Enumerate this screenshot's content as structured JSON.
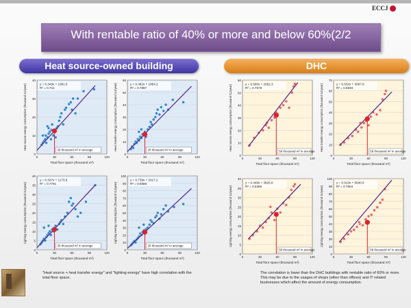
{
  "header": {
    "logo_text": "ECCJ",
    "title": "With rentable ratio of 40% or more and below 60%(2/2"
  },
  "sections": {
    "left_title": "Heat source-owned building",
    "right_title": "DHC"
  },
  "notes": {
    "left": "\"Heat source + heat transfer energy\" and \"lighting energy\" have high correlation with the total floor space.",
    "right": "The correlation is lower than the DHC buildings with rentable ratio of 60% or more. This may be due to the usages of shops (other than offices) and IT related businesses which affect the amount of energy consumption."
  },
  "colors": {
    "left_plot_bg": "#dfeaf7",
    "right_plot_bg": "#fff4dc",
    "left_point": "#2f86c9",
    "right_point": "#e8685e",
    "regression_line": "#5a2d8c",
    "average_marker": "#e0202a"
  },
  "chart_data": [
    {
      "type": "scatter",
      "theme": "left",
      "equation": "y = 0.349x + 1991.5",
      "r2": "R² = 0.741",
      "ylabel": "Heat source energy consumption (thousand GJ/year)",
      "xlabel": "Total floor space (thousand m²)",
      "xlim": [
        0,
        120
      ],
      "ylim": [
        0,
        40
      ],
      "xticks": [
        0,
        30,
        60,
        90,
        120
      ],
      "yticks": [
        0,
        10,
        20,
        30,
        40
      ],
      "line": [
        [
          0,
          2
        ],
        [
          100,
          37
        ]
      ],
      "average": [
        30,
        12.5
      ],
      "average_label": "30 thousand m² in average",
      "points": [
        [
          8,
          5
        ],
        [
          10,
          6
        ],
        [
          12,
          7
        ],
        [
          14,
          8
        ],
        [
          15,
          10
        ],
        [
          16,
          6
        ],
        [
          18,
          9
        ],
        [
          20,
          11
        ],
        [
          22,
          12
        ],
        [
          24,
          8
        ],
        [
          25,
          13
        ],
        [
          28,
          10
        ],
        [
          30,
          12
        ],
        [
          32,
          9
        ],
        [
          34,
          14
        ],
        [
          36,
          15
        ],
        [
          38,
          18
        ],
        [
          40,
          20
        ],
        [
          42,
          22
        ],
        [
          45,
          16
        ],
        [
          48,
          24
        ],
        [
          50,
          25
        ],
        [
          55,
          27
        ],
        [
          58,
          28
        ],
        [
          60,
          24
        ],
        [
          62,
          30
        ],
        [
          66,
          22
        ],
        [
          70,
          30
        ],
        [
          80,
          34
        ],
        [
          98,
          35
        ],
        [
          10,
          10
        ],
        [
          18,
          15
        ],
        [
          20,
          14
        ],
        [
          26,
          16
        ]
      ]
    },
    {
      "type": "scatter",
      "theme": "left",
      "equation": "y = 0.482x + 1854.2",
      "r2": "R² = 0.7897",
      "ylabel": "Heat transfer energy consumption (thousand GJ/year)",
      "xlabel": "Total floor space (thousand m²)",
      "xlim": [
        0,
        120
      ],
      "ylim": [
        0,
        60
      ],
      "xticks": [
        0,
        30,
        60,
        90,
        120
      ],
      "yticks": [
        0,
        10,
        20,
        30,
        40,
        50,
        60
      ],
      "line": [
        [
          0,
          2
        ],
        [
          110,
          55
        ]
      ],
      "average": [
        30,
        16
      ],
      "average_label": "30 thousand m² in average",
      "points": [
        [
          6,
          4
        ],
        [
          8,
          6
        ],
        [
          10,
          5
        ],
        [
          12,
          8
        ],
        [
          14,
          10
        ],
        [
          16,
          9
        ],
        [
          18,
          12
        ],
        [
          20,
          11
        ],
        [
          22,
          14
        ],
        [
          24,
          13
        ],
        [
          26,
          16
        ],
        [
          28,
          15
        ],
        [
          30,
          18
        ],
        [
          32,
          14
        ],
        [
          35,
          20
        ],
        [
          38,
          22
        ],
        [
          40,
          26
        ],
        [
          42,
          24
        ],
        [
          45,
          28
        ],
        [
          48,
          30
        ],
        [
          50,
          33
        ],
        [
          52,
          36
        ],
        [
          55,
          32
        ],
        [
          58,
          38
        ],
        [
          62,
          35
        ],
        [
          66,
          40
        ],
        [
          70,
          36
        ],
        [
          78,
          44
        ],
        [
          96,
          42
        ],
        [
          20,
          18
        ],
        [
          24,
          20
        ]
      ]
    },
    {
      "type": "scatter",
      "theme": "left",
      "equation": "y = 0.337x + 1173.6",
      "r2": "R² = 0.7791",
      "ylabel": "Lighting energy consumption (thousand GJ/year)",
      "xlabel": "Total floor space (thousand m²)",
      "xlim": [
        0,
        120
      ],
      "ylim": [
        0,
        40
      ],
      "xticks": [
        0,
        30,
        60,
        90,
        120
      ],
      "yticks": [
        0,
        5,
        10,
        15,
        20,
        25,
        30,
        35,
        40
      ],
      "line": [
        [
          0,
          1.2
        ],
        [
          100,
          35
        ]
      ],
      "average": [
        30,
        11
      ],
      "average_label": "30 thousand m² in average",
      "points": [
        [
          6,
          3
        ],
        [
          8,
          4
        ],
        [
          10,
          5
        ],
        [
          12,
          6
        ],
        [
          14,
          5
        ],
        [
          16,
          7
        ],
        [
          18,
          8
        ],
        [
          20,
          9
        ],
        [
          22,
          10
        ],
        [
          24,
          8
        ],
        [
          26,
          11
        ],
        [
          28,
          10
        ],
        [
          30,
          12
        ],
        [
          32,
          13
        ],
        [
          35,
          11
        ],
        [
          38,
          14
        ],
        [
          40,
          15
        ],
        [
          42,
          16
        ],
        [
          45,
          14
        ],
        [
          48,
          18
        ],
        [
          52,
          20
        ],
        [
          55,
          26
        ],
        [
          58,
          28
        ],
        [
          60,
          24
        ],
        [
          62,
          25
        ],
        [
          66,
          22
        ],
        [
          70,
          18
        ],
        [
          75,
          20
        ],
        [
          84,
          26
        ],
        [
          100,
          35
        ],
        [
          12,
          12
        ],
        [
          20,
          13
        ]
      ]
    },
    {
      "type": "scatter",
      "theme": "left",
      "equation": "y = 0.739x + 2017.2",
      "r2": "R² = 0.6586",
      "ylabel": "Lighting energy consumption (thousand GJ/year)",
      "xlabel": "Total floor space (thousand m²)",
      "xlim": [
        0,
        120
      ],
      "ylim": [
        0,
        100
      ],
      "xticks": [
        0,
        30,
        60,
        90,
        120
      ],
      "yticks": [
        0,
        10,
        20,
        30,
        40,
        50,
        60,
        70,
        80,
        90,
        100
      ],
      "line": [
        [
          0,
          2
        ],
        [
          110,
          83
        ]
      ],
      "average": [
        30,
        24
      ],
      "average_label": "30 thousand m² in average",
      "points": [
        [
          6,
          6
        ],
        [
          8,
          8
        ],
        [
          10,
          10
        ],
        [
          12,
          12
        ],
        [
          14,
          10
        ],
        [
          16,
          14
        ],
        [
          18,
          16
        ],
        [
          20,
          18
        ],
        [
          22,
          22
        ],
        [
          24,
          20
        ],
        [
          26,
          24
        ],
        [
          28,
          26
        ],
        [
          30,
          22
        ],
        [
          32,
          28
        ],
        [
          35,
          30
        ],
        [
          38,
          34
        ],
        [
          40,
          40
        ],
        [
          42,
          38
        ],
        [
          45,
          36
        ],
        [
          48,
          44
        ],
        [
          50,
          46
        ],
        [
          52,
          50
        ],
        [
          55,
          42
        ],
        [
          58,
          48
        ],
        [
          62,
          55
        ],
        [
          66,
          60
        ],
        [
          70,
          52
        ],
        [
          80,
          58
        ],
        [
          96,
          62
        ],
        [
          20,
          30
        ],
        [
          28,
          34
        ]
      ]
    },
    {
      "type": "scatter",
      "theme": "right",
      "equation": "y = 0.590x + 2682.3",
      "r2": "R² = 0.7578",
      "ylabel": "Heat source energy consumption (thousand GJ/year)",
      "xlabel": "Total floor space (thousand m²)",
      "xlim": [
        0,
        120
      ],
      "ylim": [
        0,
        60
      ],
      "xticks": [
        0,
        30,
        60,
        90,
        120
      ],
      "yticks": [
        0,
        10,
        20,
        30,
        40,
        50,
        60
      ],
      "line": [
        [
          10,
          7
        ],
        [
          95,
          58
        ]
      ],
      "average": [
        58,
        32
      ],
      "average_label": "58 thousand m² in average",
      "points": [
        [
          12,
          8
        ],
        [
          20,
          14
        ],
        [
          28,
          18
        ],
        [
          35,
          20
        ],
        [
          40,
          24
        ],
        [
          45,
          22
        ],
        [
          50,
          28
        ],
        [
          55,
          30
        ],
        [
          60,
          33
        ],
        [
          65,
          38
        ],
        [
          70,
          40
        ],
        [
          75,
          43
        ],
        [
          80,
          38
        ],
        [
          85,
          50
        ],
        [
          88,
          55
        ],
        [
          90,
          57
        ],
        [
          42,
          26
        ],
        [
          58,
          34
        ]
      ]
    },
    {
      "type": "scatter",
      "theme": "right",
      "equation": "y = 0.532x + 3097.8",
      "r2": "R² = 0.6948",
      "ylabel": "Heat transfer energy consumption (thousand GJ/year)",
      "xlabel": "Total floor space (thousand m²)",
      "xlim": [
        0,
        120
      ],
      "ylim": [
        0,
        70
      ],
      "xticks": [
        0,
        30,
        60,
        90,
        120
      ],
      "yticks": [
        0,
        10,
        20,
        30,
        40,
        50,
        60,
        70
      ],
      "line": [
        [
          10,
          9
        ],
        [
          100,
          59
        ]
      ],
      "average": [
        58,
        34
      ],
      "average_label": "58 thousand m² in average",
      "points": [
        [
          12,
          10
        ],
        [
          18,
          12
        ],
        [
          25,
          16
        ],
        [
          32,
          18
        ],
        [
          38,
          24
        ],
        [
          42,
          22
        ],
        [
          48,
          26
        ],
        [
          52,
          30
        ],
        [
          56,
          32
        ],
        [
          60,
          28
        ],
        [
          64,
          36
        ],
        [
          68,
          40
        ],
        [
          74,
          38
        ],
        [
          80,
          42
        ],
        [
          84,
          52
        ],
        [
          88,
          57
        ],
        [
          90,
          60
        ],
        [
          46,
          30
        ]
      ]
    },
    {
      "type": "scatter",
      "theme": "right",
      "equation": "y = 0.449x + 3825.8",
      "r2": "R² = 0.6386",
      "ylabel": "Lighting energy consumption (thousand GJ/year)",
      "xlabel": "Total floor space (thousand m²)",
      "xlim": [
        0,
        120
      ],
      "ylim": [
        0,
        40
      ],
      "xticks": [
        0,
        30,
        60,
        90,
        120
      ],
      "yticks": [
        0,
        5,
        10,
        15,
        20,
        25,
        30,
        35,
        40
      ],
      "line": [
        [
          10,
          8
        ],
        [
          100,
          37
        ]
      ],
      "average": [
        58,
        21
      ],
      "average_label": "58 thousand m² in average",
      "points": [
        [
          12,
          8
        ],
        [
          18,
          10
        ],
        [
          25,
          12
        ],
        [
          30,
          15
        ],
        [
          35,
          14
        ],
        [
          40,
          17
        ],
        [
          45,
          19
        ],
        [
          50,
          22
        ],
        [
          55,
          18
        ],
        [
          60,
          24
        ],
        [
          65,
          22
        ],
        [
          70,
          27
        ],
        [
          75,
          26
        ],
        [
          80,
          30
        ],
        [
          84,
          34
        ],
        [
          88,
          36
        ],
        [
          90,
          37
        ],
        [
          48,
          25
        ]
      ]
    },
    {
      "type": "scatter",
      "theme": "right",
      "equation": "y = 0.913x + 6640.5",
      "r2": "R² = 0.7804",
      "ylabel": "Lighting energy consumption (thousand GJ/year)",
      "xlabel": "Total floor space (thousand m²)",
      "xlim": [
        0,
        120
      ],
      "ylim": [
        0,
        100
      ],
      "xticks": [
        0,
        30,
        60,
        90,
        120
      ],
      "yticks": [
        0,
        10,
        20,
        30,
        40,
        50,
        60,
        70,
        80,
        90,
        100
      ],
      "line": [
        [
          10,
          16
        ],
        [
          100,
          98
        ]
      ],
      "average": [
        58,
        42
      ],
      "average_label": "58 thousand m² in average",
      "points": [
        [
          12,
          16
        ],
        [
          18,
          20
        ],
        [
          25,
          26
        ],
        [
          30,
          30
        ],
        [
          35,
          32
        ],
        [
          40,
          36
        ],
        [
          45,
          40
        ],
        [
          50,
          38
        ],
        [
          55,
          46
        ],
        [
          60,
          50
        ],
        [
          65,
          52
        ],
        [
          70,
          58
        ],
        [
          75,
          62
        ],
        [
          80,
          68
        ],
        [
          84,
          72
        ],
        [
          88,
          86
        ],
        [
          44,
          42
        ]
      ]
    }
  ]
}
